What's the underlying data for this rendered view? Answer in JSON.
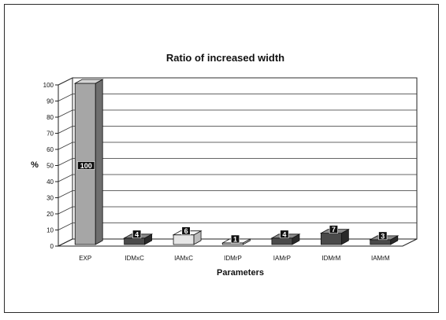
{
  "chart_data": {
    "type": "bar",
    "title": "Ratio of increased width",
    "xlabel": "Parameters",
    "ylabel": "%",
    "ylim": [
      0,
      100
    ],
    "yticks": [
      0,
      10,
      20,
      30,
      40,
      50,
      60,
      70,
      80,
      90,
      100
    ],
    "categories": [
      "EXP",
      "IDMxC",
      "IAMxC",
      "IDMrP",
      "IAMrP",
      "IDMrM",
      "IAMrM"
    ],
    "values": [
      100,
      4,
      6,
      1,
      4,
      7,
      3
    ],
    "data_labels": [
      "100",
      "4",
      "6",
      "1",
      "4",
      "7",
      "3"
    ],
    "grid": true,
    "style": "3d-column",
    "colors": {
      "exp_front": "#a6a6a6",
      "exp_side": "#6e6e6e",
      "exp_top": "#d4d4d4",
      "small_front": "#4a4a4a",
      "small_side": "#2a2a2a",
      "small_top": "#8a8a8a",
      "light_front": "#e6e6e6",
      "light_side": "#bdbdbd",
      "light_top": "#f6f6f6",
      "label_box": "#111111"
    }
  }
}
